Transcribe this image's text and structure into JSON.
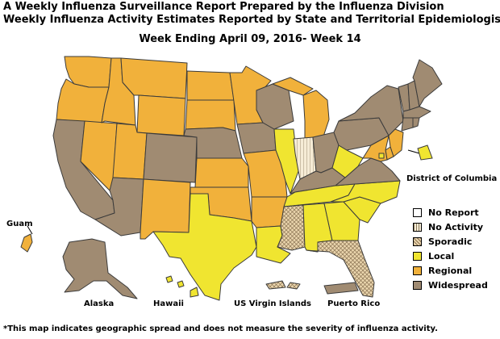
{
  "title": {
    "line1": "A Weekly Influenza Surveillance Report Prepared by the Influenza Division",
    "line2": "Weekly Influenza Activity Estimates Reported by State and Territorial Epidemiologists*",
    "week": "Week Ending April 09, 2016- Week 14"
  },
  "labels": {
    "dc": "District of Columbia",
    "guam": "Guam",
    "alaska": "Alaska",
    "hawaii": "Hawaii",
    "usvi": "US Virgin Islands",
    "pr": "Puerto Rico"
  },
  "legend": [
    {
      "key": "no_report",
      "label": "No Report"
    },
    {
      "key": "no_activity",
      "label": "No Activity"
    },
    {
      "key": "sporadic",
      "label": "Sporadic"
    },
    {
      "key": "local",
      "label": "Local"
    },
    {
      "key": "regional",
      "label": "Regional"
    },
    {
      "key": "widespread",
      "label": "Widespread"
    }
  ],
  "colors": {
    "no_report": "#ffffff",
    "no_activity": "#f6ecd6",
    "sporadic": "#ead5ad",
    "local": "#f0e530",
    "regional": "#f1b13b",
    "widespread": "#a08b72",
    "border": "#3b3b3b"
  },
  "activity": {
    "WA": "regional",
    "OR": "regional",
    "CA": "widespread",
    "NV": "regional",
    "ID": "regional",
    "MT": "regional",
    "WY": "regional",
    "UT": "regional",
    "AZ": "widespread",
    "CO": "widespread",
    "NM": "regional",
    "ND": "regional",
    "SD": "regional",
    "NE": "widespread",
    "KS": "regional",
    "OK": "regional",
    "TX": "local",
    "MN": "regional",
    "IA": "widespread",
    "MO": "regional",
    "AR": "regional",
    "LA": "local",
    "WI": "widespread",
    "IL": "local",
    "MI": "regional",
    "IN": "no_activity",
    "OH": "widespread",
    "KY": "widespread",
    "TN": "local",
    "MS": "sporadic",
    "AL": "local",
    "GA": "local",
    "FL": "sporadic",
    "SC": "local",
    "NC": "local",
    "VA": "widespread",
    "WV": "local",
    "PA": "widespread",
    "NY": "widespread",
    "VT": "widespread",
    "NH": "widespread",
    "ME": "widespread",
    "MA": "widespread",
    "RI": "widespread",
    "CT": "widespread",
    "NJ": "regional",
    "DE": "regional",
    "MD": "regional",
    "DC": "local",
    "AK": "widespread",
    "HI": "local",
    "GU": "regional",
    "PR": "widespread",
    "VI": "sporadic"
  },
  "footnote": "*This map indicates geographic spread and does not measure the severity of influenza activity."
}
